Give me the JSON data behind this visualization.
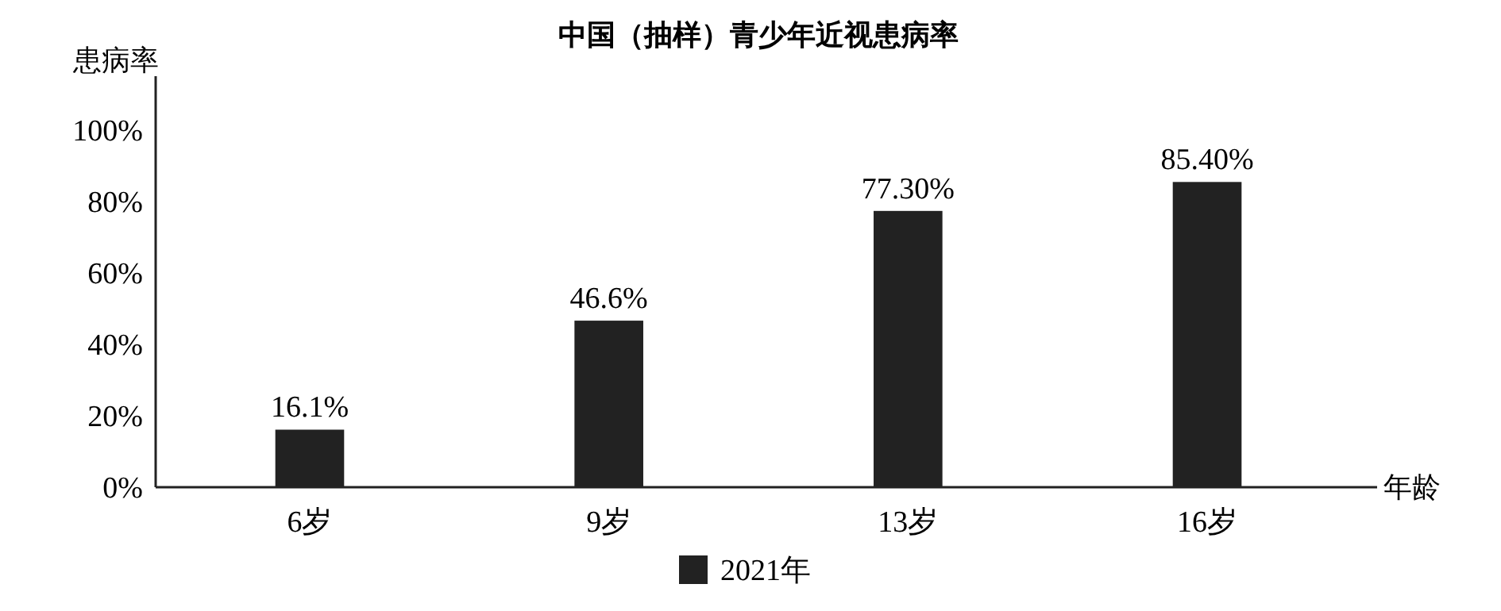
{
  "chart_data": {
    "type": "bar",
    "title": "中国（抽样）青少年近视患病率",
    "xlabel": "年龄",
    "ylabel": "患病率",
    "categories": [
      "6岁",
      "9岁",
      "13岁",
      "16岁"
    ],
    "series": [
      {
        "name": "2021年",
        "color": "#222222",
        "values": [
          16.1,
          46.6,
          77.3,
          85.4
        ],
        "value_labels": [
          "16.1%",
          "46.6%",
          "77.30%",
          "85.40%"
        ]
      }
    ],
    "ylim": [
      0,
      115
    ],
    "yticks": [
      {
        "value": 0,
        "label": "0%"
      },
      {
        "value": 20,
        "label": "20%"
      },
      {
        "value": 40,
        "label": "40%"
      },
      {
        "value": 60,
        "label": "60%"
      },
      {
        "value": 80,
        "label": "80%"
      },
      {
        "value": 100,
        "label": "100%"
      }
    ],
    "grid": false,
    "legend": "bottom"
  }
}
